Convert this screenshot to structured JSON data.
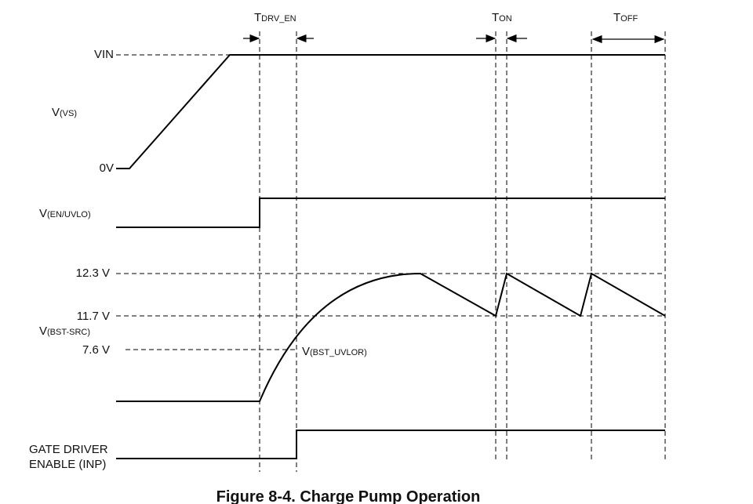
{
  "labels": {
    "t_drv_en": {
      "main": "T",
      "sub": "DRV_EN"
    },
    "t_on": {
      "main": "T",
      "sub": "ON"
    },
    "t_off": {
      "main": "T",
      "sub": "OFF"
    },
    "vin": "VIN",
    "v_vs": {
      "main": "V",
      "sub": "(VS)"
    },
    "zero_v": "0V",
    "v_en_uvlo": {
      "main": "V",
      "sub": "(EN/UVLO)"
    },
    "v_high": "12.3 V",
    "v_low": "11.7 V",
    "v_bst_src": {
      "main": "V",
      "sub": "(BST-SRC)"
    },
    "v_uvlor_level": "7.6 V",
    "v_bst_uvlor": {
      "main": "V",
      "sub": "(BST_UVLOR)"
    },
    "gate_driver": [
      "GATE DRIVER",
      "ENABLE (INP)"
    ]
  },
  "caption": "Figure 8-4. Charge Pump Operation"
}
